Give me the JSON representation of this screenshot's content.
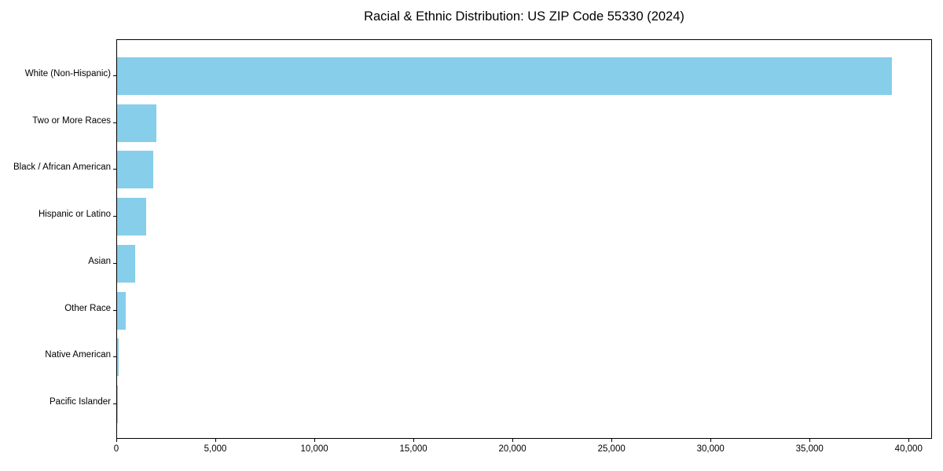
{
  "chart_data": {
    "type": "bar",
    "orientation": "horizontal",
    "title": "Racial & Ethnic Distribution: US ZIP Code 55330 (2024)",
    "categories": [
      "White (Non-Hispanic)",
      "Two or More Races",
      "Black / African American",
      "Hispanic or Latino",
      "Asian",
      "Other Race",
      "Native American",
      "Pacific Islander"
    ],
    "values": [
      39100,
      1980,
      1810,
      1450,
      900,
      430,
      80,
      15
    ],
    "xlabel": "",
    "ylabel": "",
    "xlim": [
      0,
      41100
    ],
    "x_ticks": [
      0,
      5000,
      10000,
      15000,
      20000,
      25000,
      30000,
      35000,
      40000
    ],
    "x_tick_labels": [
      "0",
      "5,000",
      "10,000",
      "15,000",
      "20,000",
      "25,000",
      "30,000",
      "35,000",
      "40,000"
    ],
    "bar_color": "#87CEEB",
    "spine_color": "#000000",
    "grid": false,
    "legend": null
  }
}
